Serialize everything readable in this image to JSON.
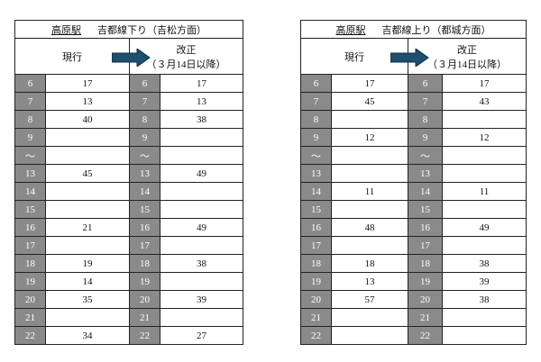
{
  "tables": [
    {
      "station": "高原駅",
      "direction": "吉都線下り（吉松方面）",
      "current_label": "現行",
      "revised_label": "改正",
      "revised_note": "（３月14日以降）",
      "rows": [
        {
          "hour": "6",
          "current": "17",
          "revised": "17"
        },
        {
          "hour": "7",
          "current": "13",
          "revised": "13"
        },
        {
          "hour": "8",
          "current": "40",
          "revised": "38"
        },
        {
          "hour": "9",
          "current": null,
          "revised": null
        },
        {
          "hour": "〜",
          "current": null,
          "revised": null
        },
        {
          "hour": "13",
          "current": "45",
          "revised": "49"
        },
        {
          "hour": "14",
          "current": null,
          "revised": null
        },
        {
          "hour": "15",
          "current": null,
          "revised": null
        },
        {
          "hour": "16",
          "current": "21",
          "revised": "49"
        },
        {
          "hour": "17",
          "current": null,
          "revised": null
        },
        {
          "hour": "18",
          "current": "19",
          "revised": "38"
        },
        {
          "hour": "19",
          "current": "14",
          "revised": null
        },
        {
          "hour": "20",
          "current": "35",
          "revised": "39"
        },
        {
          "hour": "21",
          "current": null,
          "revised": null
        },
        {
          "hour": "22",
          "current": "34",
          "revised": "27"
        }
      ]
    },
    {
      "station": "高原駅",
      "direction": "吉都線上り（都城方面）",
      "current_label": "現行",
      "revised_label": "改正",
      "revised_note": "（３月14日以降）",
      "rows": [
        {
          "hour": "6",
          "current": "17",
          "revised": "17"
        },
        {
          "hour": "7",
          "current": "45",
          "revised": "43"
        },
        {
          "hour": "8",
          "current": null,
          "revised": null
        },
        {
          "hour": "9",
          "current": "12",
          "revised": "12"
        },
        {
          "hour": "〜",
          "current": null,
          "revised": null
        },
        {
          "hour": "13",
          "current": null,
          "revised": null
        },
        {
          "hour": "14",
          "current": "11",
          "revised": "11"
        },
        {
          "hour": "15",
          "current": null,
          "revised": null
        },
        {
          "hour": "16",
          "current": "48",
          "revised": "49"
        },
        {
          "hour": "17",
          "current": null,
          "revised": null
        },
        {
          "hour": "18",
          "current": "18",
          "revised": "38"
        },
        {
          "hour": "19",
          "current": "13",
          "revised": "39"
        },
        {
          "hour": "20",
          "current": "57",
          "revised": "38"
        },
        {
          "hour": "21",
          "current": null,
          "revised": null
        },
        {
          "hour": "22",
          "current": null,
          "revised": null
        }
      ]
    }
  ]
}
